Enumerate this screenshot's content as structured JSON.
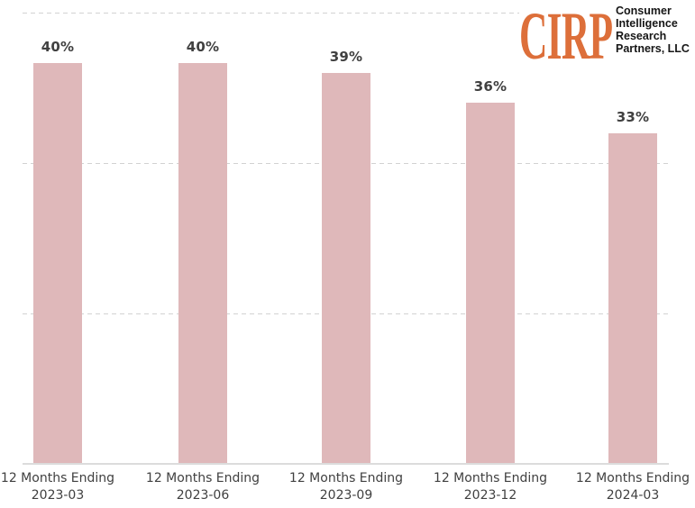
{
  "chart_data": {
    "type": "bar",
    "categories": [
      "2023-03",
      "2023-06",
      "2023-09",
      "2023-12",
      "2024-03"
    ],
    "x_tick_prefix": "12 Months Ending",
    "values": [
      40,
      40,
      39,
      36,
      33
    ],
    "data_labels": [
      "40%",
      "40%",
      "39%",
      "36%",
      "33%"
    ],
    "value_suffix": "%",
    "ylim": [
      0,
      45
    ],
    "gridline_values": [
      15,
      30,
      45
    ],
    "grid_style": "dashed-horizontal",
    "legend": "none",
    "bar_color": "#dfb8ba",
    "text_color": "#404040",
    "gridline_color": "#d2d2d2"
  },
  "logo": {
    "brand": "CIRP",
    "brand_color": "#dd6f3a",
    "lines": [
      "Consumer",
      "Intelligence",
      "Research",
      "Partners, LLC"
    ]
  }
}
